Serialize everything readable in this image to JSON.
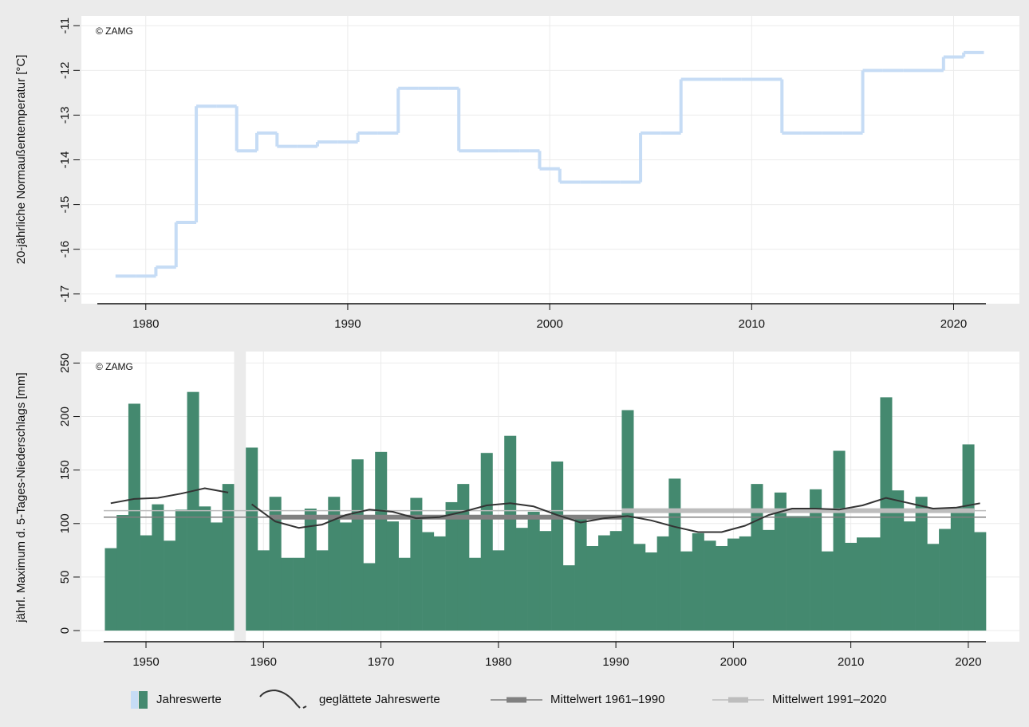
{
  "chart_data": [
    {
      "type": "step",
      "annotation": "© ZAMG",
      "y_label": "20-jährliche Normaußentemperatur [°C]",
      "color": "#c6dcf5",
      "grid": true,
      "x": [
        1979,
        1980,
        1981,
        1982,
        1983,
        1984,
        1985,
        1986,
        1987,
        1988,
        1989,
        1990,
        1991,
        1992,
        1993,
        1994,
        1995,
        1996,
        1997,
        1998,
        1999,
        2000,
        2001,
        2002,
        2003,
        2004,
        2005,
        2006,
        2007,
        2008,
        2009,
        2010,
        2011,
        2012,
        2013,
        2014,
        2015,
        2016,
        2017,
        2018,
        2019,
        2020,
        2021
      ],
      "values": [
        -16.6,
        -16.6,
        -16.4,
        -15.4,
        -12.8,
        -12.8,
        -13.8,
        -13.4,
        -13.7,
        -13.7,
        -13.6,
        -13.6,
        -13.4,
        -13.4,
        -12.4,
        -12.4,
        -12.4,
        -13.8,
        -13.8,
        -13.8,
        -13.8,
        -14.2,
        -14.5,
        -14.5,
        -14.5,
        -14.5,
        -13.4,
        -13.4,
        -12.2,
        -12.2,
        -12.2,
        -12.2,
        -12.2,
        -13.4,
        -13.4,
        -13.4,
        -13.4,
        -12.0,
        -12.0,
        -12.0,
        -12.0,
        -11.7,
        -11.6
      ],
      "xlim": [
        1977.6,
        2021.6
      ],
      "xticks": [
        1980,
        1990,
        2000,
        2010,
        2020
      ],
      "ylim": [
        -17.2,
        -10.8
      ],
      "yticks": [
        -11,
        -12,
        -13,
        -14,
        -15,
        -16,
        -17
      ]
    },
    {
      "type": "bar",
      "annotation": "© ZAMG",
      "y_label": "jährl. Maximum d. 5-Tages-Niederschlags [mm]",
      "grid": true,
      "series": [
        {
          "name": "Jahreswerte",
          "type": "bar",
          "color": "#44896f",
          "x": [
            1947,
            1948,
            1949,
            1950,
            1951,
            1952,
            1953,
            1954,
            1955,
            1956,
            1957,
            1958,
            1959,
            1960,
            1961,
            1962,
            1963,
            1964,
            1965,
            1966,
            1967,
            1968,
            1969,
            1970,
            1971,
            1972,
            1973,
            1974,
            1975,
            1976,
            1977,
            1978,
            1979,
            1980,
            1981,
            1982,
            1983,
            1984,
            1985,
            1986,
            1987,
            1988,
            1989,
            1990,
            1991,
            1992,
            1993,
            1994,
            1995,
            1996,
            1997,
            1998,
            1999,
            2000,
            2001,
            2002,
            2003,
            2004,
            2005,
            2006,
            2007,
            2008,
            2009,
            2010,
            2011,
            2012,
            2013,
            2014,
            2015,
            2016,
            2017,
            2018,
            2019,
            2020,
            2021
          ],
          "values": [
            77,
            108,
            212,
            89,
            118,
            84,
            113,
            223,
            116,
            101,
            137,
            null,
            171,
            75,
            125,
            68,
            68,
            114,
            75,
            125,
            101,
            160,
            63,
            167,
            102,
            68,
            124,
            92,
            88,
            120,
            137,
            68,
            166,
            75,
            182,
            96,
            111,
            93,
            158,
            61,
            105,
            79,
            89,
            93,
            206,
            81,
            73,
            88,
            142,
            74,
            91,
            84,
            79,
            86,
            88,
            137,
            94,
            129,
            107,
            107,
            132,
            74,
            168,
            82,
            87,
            87,
            218,
            131,
            102,
            125,
            81,
            95,
            115,
            174,
            92
          ]
        },
        {
          "name": "geglättete Jahreswerte",
          "type": "line",
          "color": "#333333",
          "x": [
            1947,
            1949,
            1951,
            1953,
            1955,
            1957,
            1958,
            1959,
            1961,
            1963,
            1965,
            1967,
            1969,
            1971,
            1973,
            1975,
            1977,
            1979,
            1981,
            1983,
            1985,
            1987,
            1989,
            1991,
            1993,
            1995,
            1997,
            1999,
            2001,
            2003,
            2005,
            2007,
            2009,
            2011,
            2013,
            2015,
            2017,
            2019,
            2021
          ],
          "values": [
            119,
            123,
            124,
            128,
            133,
            129,
            null,
            118,
            102,
            96,
            99,
            108,
            113,
            111,
            105,
            106,
            111,
            117,
            119,
            116,
            108,
            101,
            105,
            107,
            103,
            97,
            92,
            92,
            98,
            108,
            114,
            114,
            113,
            117,
            124,
            119,
            114,
            115,
            119
          ]
        },
        {
          "name": "Mittelwert 1961–1990",
          "type": "mean",
          "color": "#808080",
          "period": [
            1961,
            1990
          ],
          "value": 106
        },
        {
          "name": "Mittelwert 1991–2020",
          "type": "mean",
          "color": "#bdbdbd",
          "period": [
            1991,
            2020
          ],
          "value": 112
        }
      ],
      "xlim": [
        1946.4,
        2021.5
      ],
      "xticks": [
        1950,
        1960,
        1970,
        1980,
        1990,
        2000,
        2010,
        2020
      ],
      "ylim": [
        -10.4,
        260
      ],
      "yticks": [
        0,
        50,
        100,
        150,
        200,
        250
      ]
    }
  ]
}
